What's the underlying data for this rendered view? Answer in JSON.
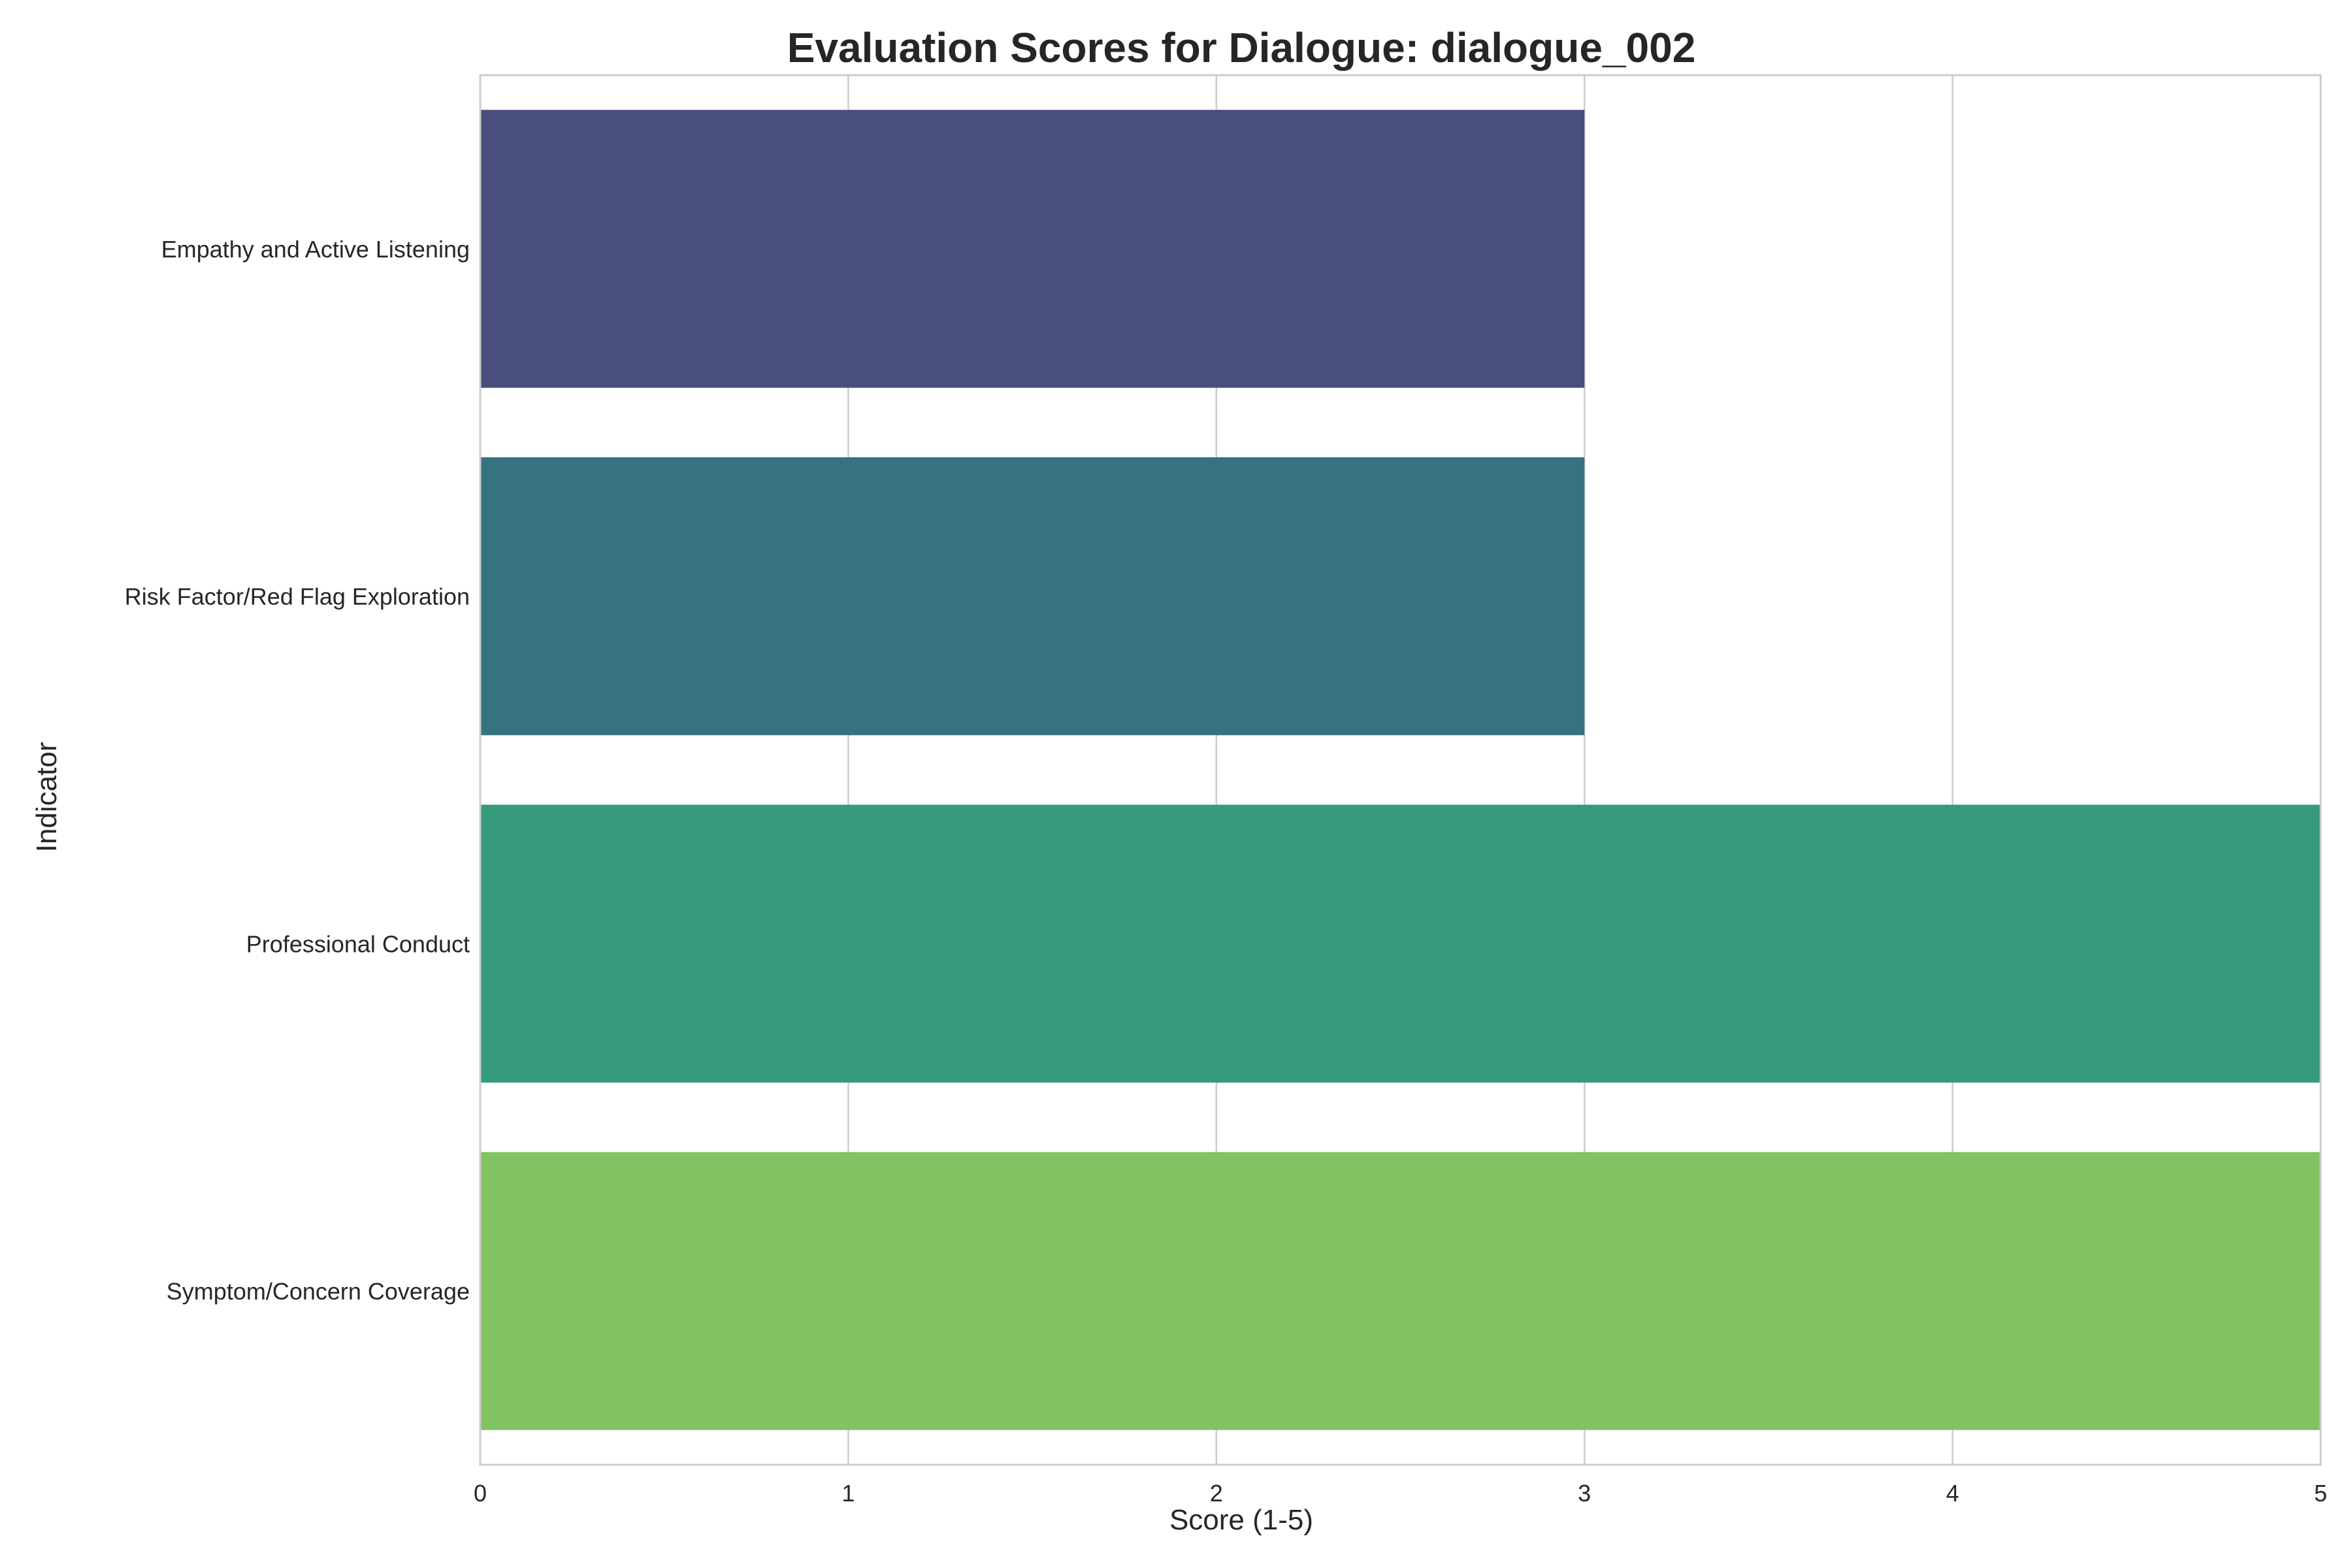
{
  "chart_data": {
    "type": "bar",
    "orientation": "horizontal",
    "title": "Evaluation Scores for Dialogue: dialogue_002",
    "xlabel": "Score (1-5)",
    "ylabel": "Indicator",
    "xlim": [
      0,
      5
    ],
    "xticks": [
      0,
      1,
      2,
      3,
      4,
      5
    ],
    "grid": true,
    "categories": [
      "Empathy and Active Listening",
      "Risk Factor/Red Flag Exploration",
      "Professional Conduct",
      "Symptom/Concern Coverage"
    ],
    "values": [
      3,
      3,
      5,
      5
    ],
    "colors": [
      "#4a4e7d",
      "#377281",
      "#369a7d",
      "#82c262"
    ]
  }
}
